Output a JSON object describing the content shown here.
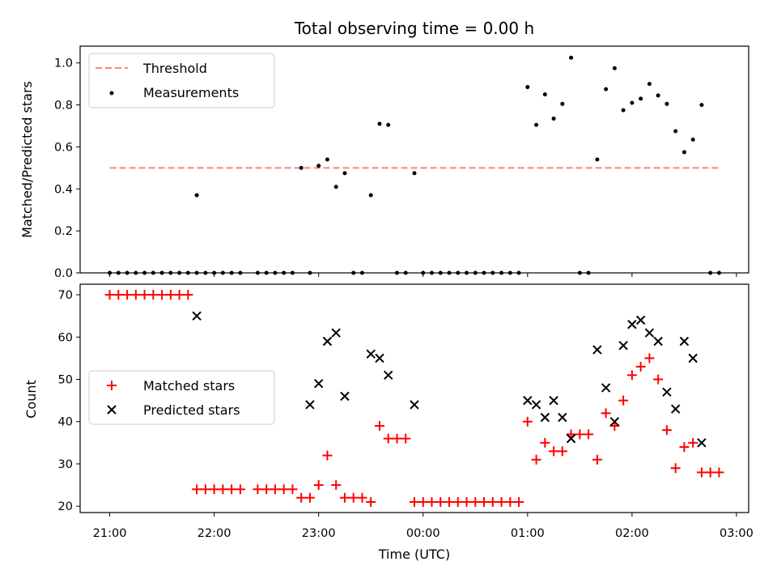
{
  "chart_data": [
    {
      "type": "scatter",
      "title": "Total observing time = 0.00 h",
      "xlabel": "",
      "ylabel": "Matched/Predicted stars",
      "xlim": [
        "20:43",
        "03:07"
      ],
      "ylim": [
        0,
        1.08
      ],
      "yticks": [
        "0.0",
        "0.2",
        "0.4",
        "0.6",
        "0.8",
        "1.0"
      ],
      "grid": false,
      "legend_position": "upper-left",
      "threshold": {
        "name": "Threshold",
        "value": 0.5,
        "x_range": [
          "21:00",
          "02:50"
        ],
        "color": "#ff8080"
      },
      "series": [
        {
          "name": "Measurements",
          "marker": "dot",
          "color": "#000000",
          "x": [
            "21:00",
            "21:05",
            "21:10",
            "21:15",
            "21:20",
            "21:25",
            "21:30",
            "21:35",
            "21:40",
            "21:45",
            "21:50",
            "21:50",
            "21:55",
            "22:00",
            "22:05",
            "22:10",
            "22:15",
            "22:25",
            "22:30",
            "22:35",
            "22:40",
            "22:45",
            "22:50",
            "22:55",
            "23:00",
            "23:05",
            "23:10",
            "23:15",
            "23:20",
            "23:25",
            "23:30",
            "23:35",
            "23:40",
            "23:45",
            "23:50",
            "23:55",
            "00:00",
            "00:05",
            "00:10",
            "00:15",
            "00:20",
            "00:25",
            "00:30",
            "00:35",
            "00:40",
            "00:45",
            "00:50",
            "00:55",
            "01:00",
            "01:05",
            "01:10",
            "01:15",
            "01:20",
            "01:25",
            "01:30",
            "01:35",
            "01:40",
            "01:45",
            "01:50",
            "01:55",
            "02:00",
            "02:05",
            "02:10",
            "02:15",
            "02:20",
            "02:25",
            "02:30",
            "02:35",
            "02:40",
            "02:45",
            "02:50"
          ],
          "y": [
            0,
            0,
            0,
            0,
            0,
            0,
            0,
            0,
            0,
            0,
            0,
            0.37,
            0,
            0,
            0,
            0,
            0,
            0,
            0,
            0,
            0,
            0,
            0.5,
            0,
            0.51,
            0.54,
            0.41,
            0.475,
            0,
            0,
            0.37,
            0.71,
            0.705,
            0,
            0,
            0.475,
            0,
            0,
            0,
            0,
            0,
            0,
            0,
            0,
            0,
            0,
            0,
            0,
            0.885,
            0.705,
            0.85,
            0.735,
            0.805,
            1.025,
            0,
            0,
            0.54,
            0.875,
            0.975,
            0.775,
            0.81,
            0.83,
            0.9,
            0.845,
            0.805,
            0.675,
            0.575,
            0.635,
            0.8,
            0,
            0
          ]
        }
      ]
    },
    {
      "type": "scatter",
      "title": "",
      "xlabel": "Time (UTC)",
      "ylabel": "Count",
      "xlim": [
        "20:43",
        "03:07"
      ],
      "ylim": [
        18.5,
        72.5
      ],
      "yticks": [
        "20",
        "30",
        "40",
        "50",
        "60",
        "70"
      ],
      "xticks": [
        "21:00",
        "22:00",
        "23:00",
        "00:00",
        "01:00",
        "02:00",
        "03:00"
      ],
      "grid": false,
      "legend_position": "center-left",
      "series": [
        {
          "name": "Matched stars",
          "marker": "plus",
          "color": "#ff0000",
          "x": [
            "21:00",
            "21:05",
            "21:10",
            "21:15",
            "21:20",
            "21:25",
            "21:30",
            "21:35",
            "21:40",
            "21:45",
            "21:50",
            "21:55",
            "22:00",
            "22:05",
            "22:10",
            "22:15",
            "22:25",
            "22:30",
            "22:35",
            "22:40",
            "22:45",
            "22:50",
            "22:55",
            "23:00",
            "23:05",
            "23:10",
            "23:15",
            "23:20",
            "23:25",
            "23:30",
            "23:35",
            "23:40",
            "23:45",
            "23:50",
            "23:55",
            "00:00",
            "00:05",
            "00:10",
            "00:15",
            "00:20",
            "00:25",
            "00:30",
            "00:35",
            "00:40",
            "00:45",
            "00:50",
            "00:55",
            "01:00",
            "01:05",
            "01:10",
            "01:15",
            "01:20",
            "01:25",
            "01:30",
            "01:35",
            "01:40",
            "01:45",
            "01:50",
            "01:55",
            "02:00",
            "02:05",
            "02:10",
            "02:15",
            "02:20",
            "02:25",
            "02:30",
            "02:35",
            "02:40",
            "02:45",
            "02:50"
          ],
          "y": [
            70,
            70,
            70,
            70,
            70,
            70,
            70,
            70,
            70,
            70,
            24,
            24,
            24,
            24,
            24,
            24,
            24,
            24,
            24,
            24,
            24,
            22,
            22,
            25,
            32,
            25,
            22,
            22,
            22,
            21,
            39,
            36,
            36,
            36,
            21,
            21,
            21,
            21,
            21,
            21,
            21,
            21,
            21,
            21,
            21,
            21,
            21,
            40,
            31,
            35,
            33,
            33,
            37,
            37,
            37,
            31,
            42,
            39,
            45,
            51,
            53,
            55,
            50,
            38,
            29,
            34,
            35,
            28,
            28,
            28
          ]
        },
        {
          "name": "Predicted stars",
          "marker": "x",
          "color": "#000000",
          "x": [
            "21:50",
            "22:55",
            "23:00",
            "23:05",
            "23:10",
            "23:15",
            "23:30",
            "23:35",
            "23:40",
            "23:55",
            "01:00",
            "01:05",
            "01:10",
            "01:15",
            "01:20",
            "01:25",
            "01:40",
            "01:45",
            "01:50",
            "01:55",
            "02:00",
            "02:05",
            "02:10",
            "02:15",
            "02:20",
            "02:25",
            "02:30",
            "02:35",
            "02:40"
          ],
          "y": [
            65,
            44,
            49,
            59,
            61,
            46,
            56,
            55,
            51,
            44,
            45,
            44,
            41,
            45,
            41,
            36,
            57,
            48,
            40,
            58,
            63,
            64,
            61,
            59,
            47,
            43,
            59,
            55,
            35
          ]
        }
      ]
    }
  ]
}
